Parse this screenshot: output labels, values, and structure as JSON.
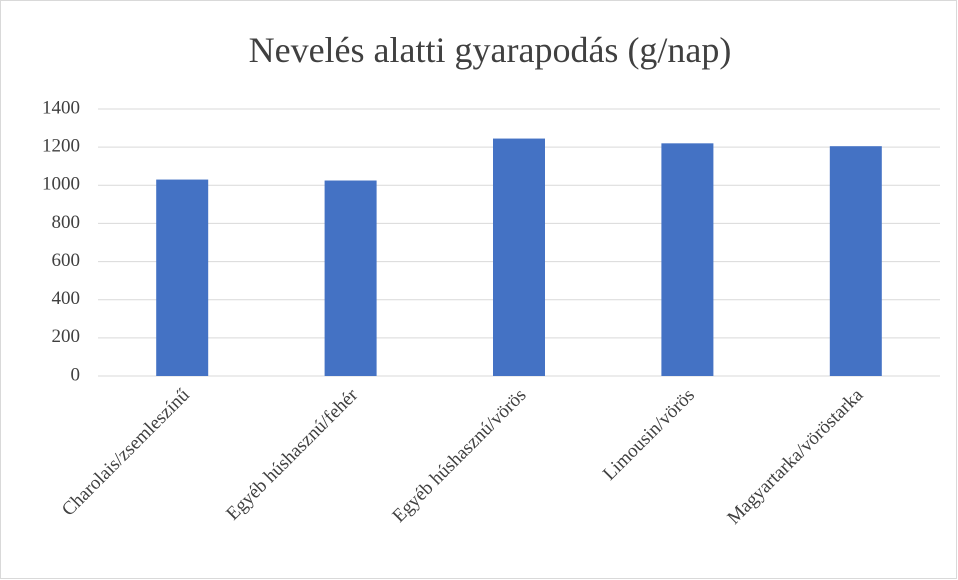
{
  "chart_data": {
    "type": "bar",
    "title": "Nevelés alatti gyarapodás (g/nap)",
    "categories": [
      "Charolais/zsemleszínű",
      "Egyéb húshasznú/fehér",
      "Egyéb húshasznú/vörös",
      "Limousin/vörös",
      "Magyartarka/vöröstarka"
    ],
    "values": [
      1030,
      1025,
      1245,
      1220,
      1205
    ],
    "color": "#4472c4",
    "ylim": [
      0,
      1400
    ],
    "yticks": [
      0,
      200,
      400,
      600,
      800,
      1000,
      1200,
      1400
    ],
    "grid": true
  }
}
